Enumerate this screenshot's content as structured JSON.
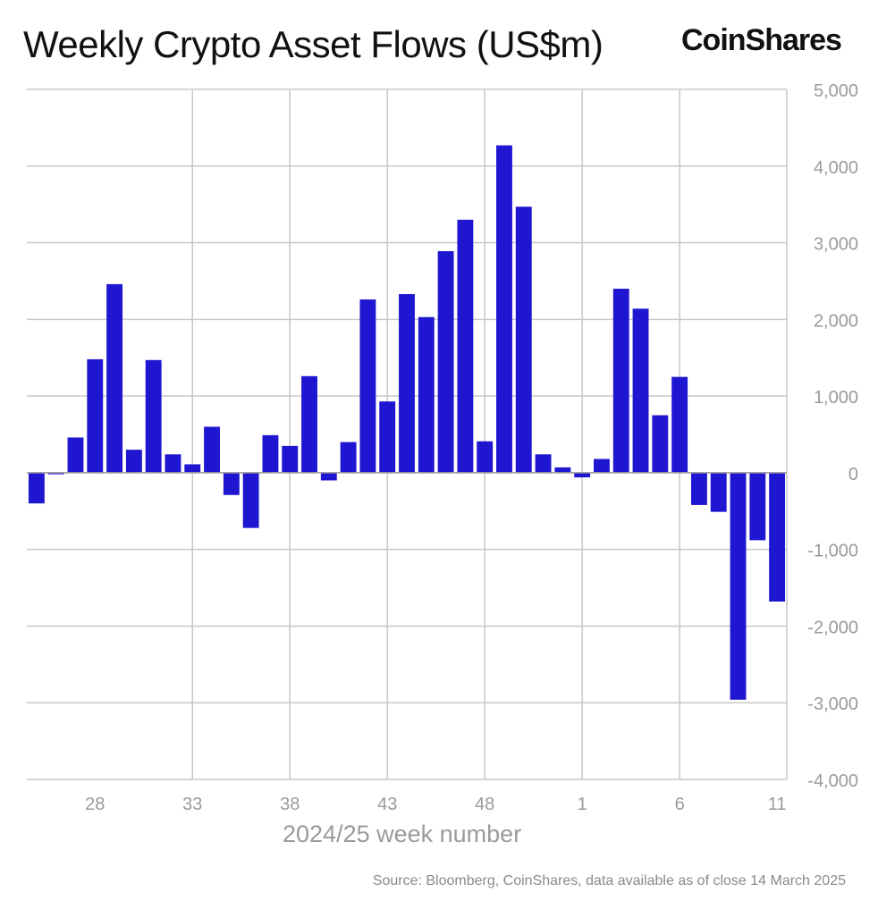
{
  "header": {
    "title": "Weekly Crypto Asset Flows (US$m)",
    "brand": "CoinShares"
  },
  "footer": {
    "source": "Source: Bloomberg, CoinShares, data available as of close 14 March 2025"
  },
  "colors": {
    "bar": "#1f16d1",
    "grid": "#c8c8c8",
    "tick_text": "#9a9a9a"
  },
  "chart_data": {
    "type": "bar",
    "title": "Weekly Crypto Asset Flows (US$m)",
    "xlabel": "2024/25 week number",
    "ylabel": "",
    "ylim": [
      -4000,
      5000
    ],
    "yticks": [
      5000,
      4000,
      3000,
      2000,
      1000,
      0,
      -1000,
      -2000,
      -3000,
      -4000
    ],
    "ytick_labels": [
      "5,000",
      "4,000",
      "3,000",
      "2,000",
      "1,000",
      "0",
      "-1,000",
      "-2,000",
      "-3,000",
      "-4,000"
    ],
    "xtick_labels": [
      "28",
      "33",
      "38",
      "43",
      "48",
      "1",
      "6",
      "11"
    ],
    "xtick_index": [
      3,
      8,
      13,
      18,
      23,
      28,
      33,
      38
    ],
    "categories": [
      "25",
      "26",
      "27",
      "28",
      "29",
      "30",
      "31",
      "32",
      "33",
      "34",
      "35",
      "36",
      "37",
      "38",
      "39",
      "40",
      "41",
      "42",
      "43",
      "44",
      "45",
      "46",
      "47",
      "48",
      "49",
      "50",
      "51",
      "52",
      "1",
      "2",
      "3",
      "4",
      "5",
      "6",
      "7",
      "8",
      "9",
      "10",
      "11"
    ],
    "values": [
      -400,
      -20,
      460,
      1480,
      2460,
      300,
      1470,
      240,
      110,
      600,
      -290,
      -720,
      490,
      350,
      1260,
      -100,
      400,
      2260,
      930,
      2330,
      2030,
      2890,
      3300,
      410,
      4270,
      3470,
      240,
      70,
      -60,
      180,
      2400,
      2140,
      750,
      1250,
      -420,
      -510,
      -2960,
      -880,
      -1680
    ],
    "grid": true,
    "y_axis_position": "right",
    "legend": "none"
  }
}
